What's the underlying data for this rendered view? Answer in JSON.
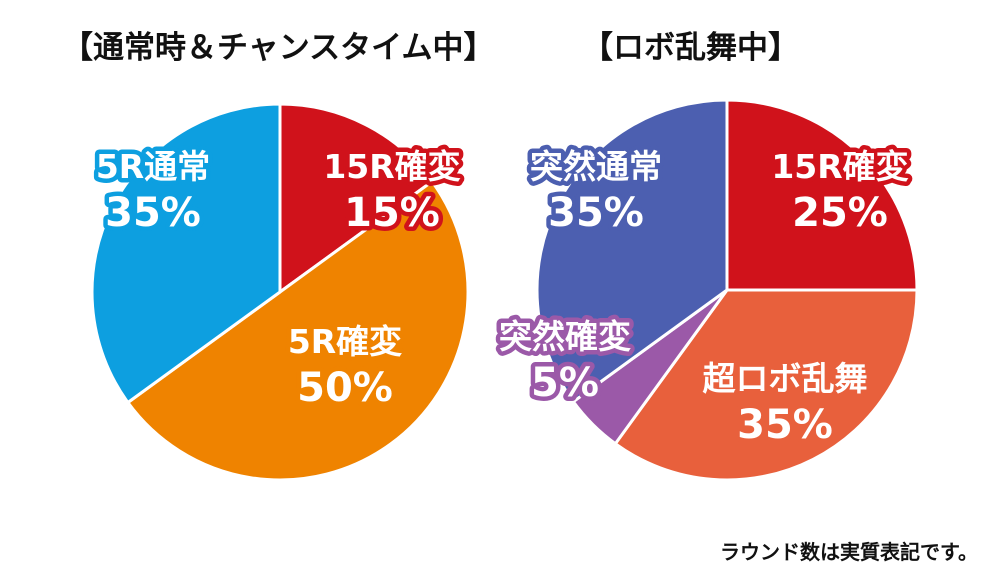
{
  "chart_data": [
    {
      "type": "pie",
      "title": "【通常時＆チャンスタイム中】",
      "slices": [
        {
          "label": "15R確変",
          "value": 15,
          "pct_text": "15%",
          "color": "#d0121b"
        },
        {
          "label": "5R確変",
          "value": 50,
          "pct_text": "50%",
          "color": "#ef8300"
        },
        {
          "label": "5R通常",
          "value": 35,
          "pct_text": "35%",
          "color": "#0d9fe0"
        }
      ]
    },
    {
      "type": "pie",
      "title": "【ロボ乱舞中】",
      "slices": [
        {
          "label": "15R確変",
          "value": 25,
          "pct_text": "25%",
          "color": "#d0121b"
        },
        {
          "label": "超ロボ乱舞",
          "value": 35,
          "pct_text": "35%",
          "color": "#e8603c"
        },
        {
          "label": "突然確変",
          "value": 5,
          "pct_text": "5%",
          "color": "#9b59a8"
        },
        {
          "label": "突然通常",
          "value": 35,
          "pct_text": "35%",
          "color": "#4c5fb0"
        }
      ]
    }
  ],
  "footnote": "ラウンド数は実質表記です。"
}
